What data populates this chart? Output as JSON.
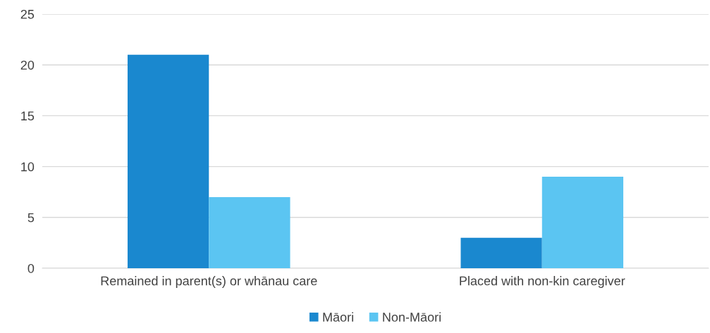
{
  "chart_data": {
    "type": "bar",
    "categories": [
      "Remained in parent(s) or whānau care",
      "Placed with non-kin caregiver"
    ],
    "series": [
      {
        "name": "Māori",
        "color": "#1a88cf",
        "values": [
          21,
          3
        ]
      },
      {
        "name": "Non-Māori",
        "color": "#5bc5f2",
        "values": [
          7,
          9
        ]
      }
    ],
    "ylim": [
      0,
      25
    ],
    "yticks": [
      0,
      5,
      10,
      15,
      20,
      25
    ],
    "grid": "y",
    "legend": "bottom"
  }
}
